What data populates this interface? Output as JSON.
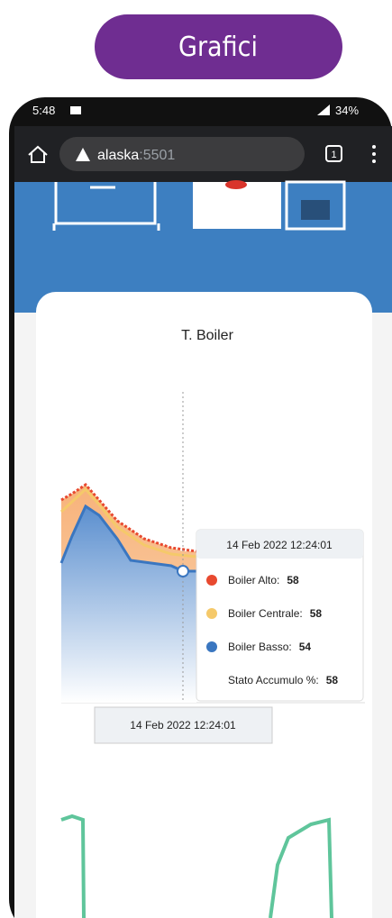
{
  "banner": {
    "title": "Grafici"
  },
  "status_bar": {
    "time": "5:48",
    "battery": "34%"
  },
  "browser": {
    "url_host": "alaska",
    "url_port": ":5501",
    "tabs": "1"
  },
  "chart": {
    "title": "T. Boiler",
    "tooltip": {
      "date": "14 Feb 2022 12:24:01",
      "items": [
        {
          "name": "Boiler Alto:",
          "value": 58,
          "color": "#e8492f"
        },
        {
          "name": "Boiler Centrale:",
          "value": 58,
          "color": "#f5c96a"
        },
        {
          "name": "Boiler Basso:",
          "value": 54,
          "color": "#3a76c0"
        },
        {
          "name": "Stato Accumulo %:",
          "value": 58
        }
      ]
    },
    "crosshair_label": "14 Feb 2022 12:24:01"
  }
}
